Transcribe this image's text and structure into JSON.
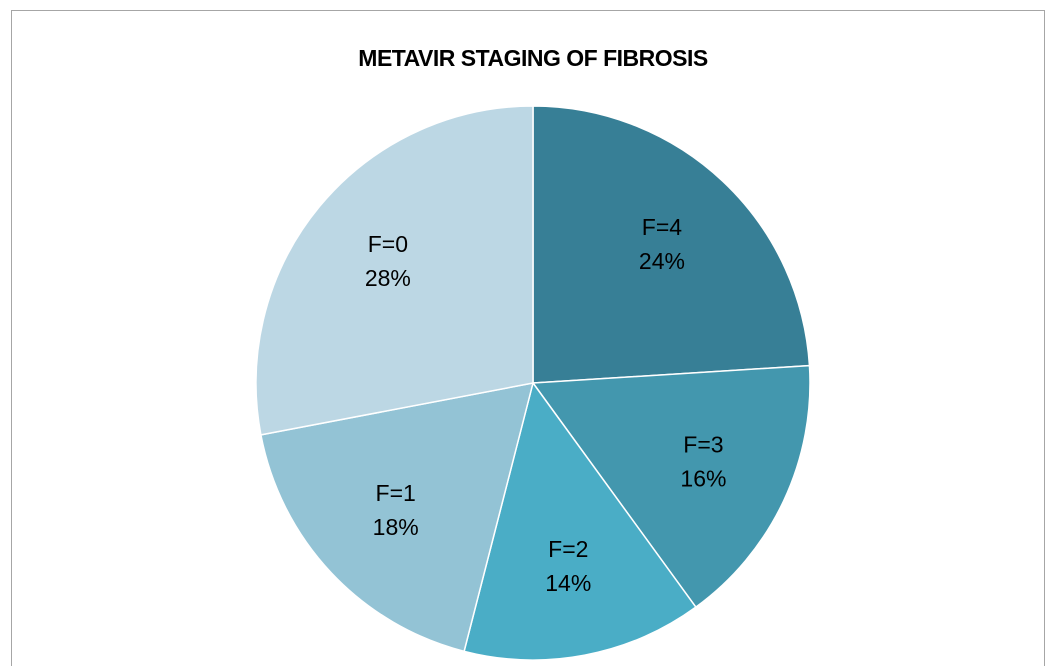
{
  "chart_data": {
    "type": "pie",
    "title": "METAVIR STAGING OF FIBROSIS",
    "categories": [
      "F=4",
      "F=3",
      "F=2",
      "F=1",
      "F=0"
    ],
    "values": [
      24,
      16,
      14,
      18,
      28
    ],
    "value_labels": [
      "24%",
      "16%",
      "14%",
      "18%",
      "28%"
    ],
    "colors": [
      "#377f96",
      "#4397ae",
      "#4aadc6",
      "#93c3d5",
      "#bcd7e4"
    ]
  }
}
